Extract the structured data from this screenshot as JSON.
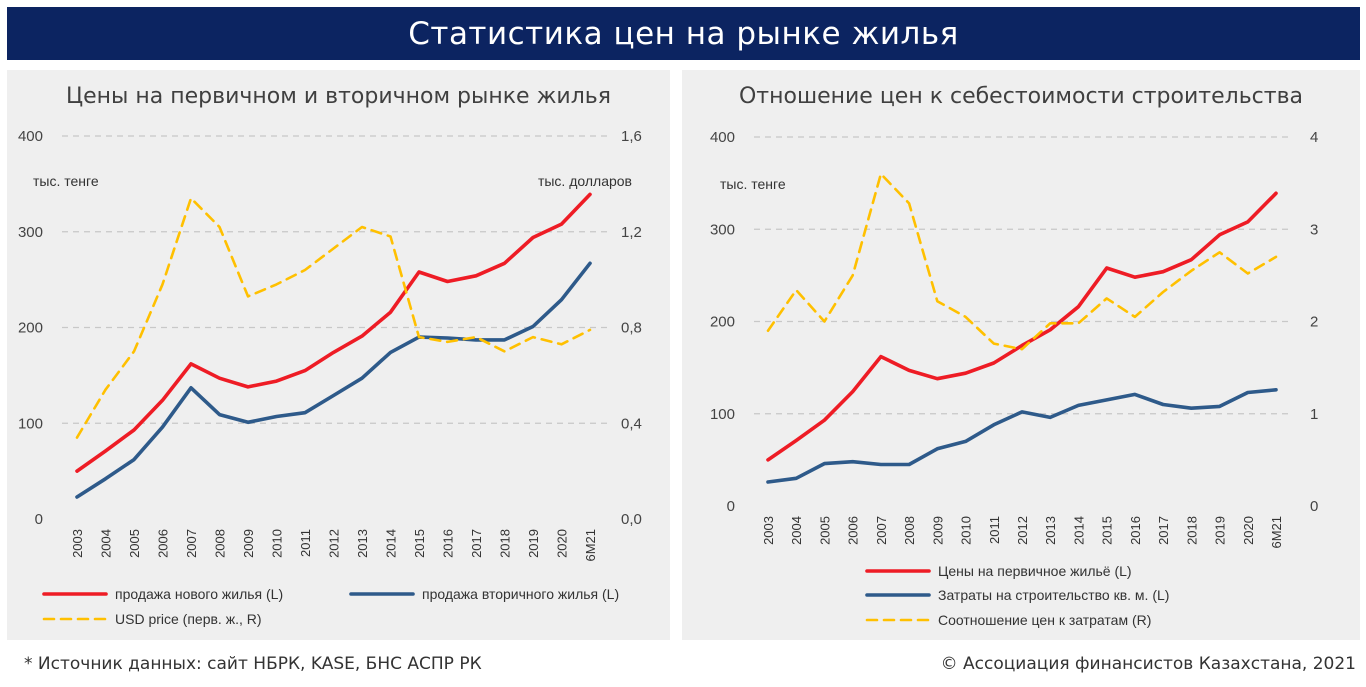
{
  "header": {
    "title": "Статистика цен на рынке жилья"
  },
  "footer": {
    "source": "* Источник данных: сайт НБРК, KASE, БНС АСПР РК",
    "copyright": "© Ассоциация финансистов Казахстана, 2021"
  },
  "colors": {
    "banner": "#0c2461",
    "panel": "#efefef",
    "red": "#ee1c25",
    "blue": "#2e5a8a",
    "yellow": "#ffc000"
  },
  "chart_data": [
    {
      "type": "line",
      "title": "Цены на первичном и вторичном рынке жилья",
      "left_unit": "тыс. тенге",
      "right_unit": "тыс. долларов",
      "x": [
        "2003",
        "2004",
        "2005",
        "2006",
        "2007",
        "2008",
        "2009",
        "2010",
        "2011",
        "2012",
        "2013",
        "2014",
        "2015",
        "2016",
        "2017",
        "2018",
        "2019",
        "2020",
        "6М21"
      ],
      "ylim_left": [
        0,
        400
      ],
      "yticks_left": [
        "0",
        "100",
        "200",
        "300",
        "400"
      ],
      "ylim_right": [
        0,
        1.6
      ],
      "yticks_right": [
        "0,0",
        "0,4",
        "0,8",
        "1,2",
        "1,6"
      ],
      "series": [
        {
          "name": "продажа нового жилья (L)",
          "axis": "left",
          "color": "#ee1c25",
          "style": "solid",
          "values": [
            50,
            71,
            93,
            124,
            162,
            147,
            138,
            144,
            155,
            174,
            191,
            216,
            258,
            248,
            254,
            267,
            294,
            308,
            339
          ]
        },
        {
          "name": "продажа вторичного жилья (L)",
          "axis": "left",
          "color": "#2e5a8a",
          "style": "solid",
          "values": [
            23,
            42,
            62,
            96,
            137,
            109,
            101,
            107,
            111,
            129,
            147,
            174,
            190,
            189,
            187,
            187,
            201,
            229,
            267
          ]
        },
        {
          "name": "USD price (перв. ж., R)",
          "axis": "right",
          "color": "#ffc000",
          "style": "dashed",
          "values": [
            0.34,
            0.54,
            0.7,
            0.98,
            1.34,
            1.22,
            0.93,
            0.98,
            1.04,
            1.13,
            1.22,
            1.18,
            0.76,
            0.74,
            0.76,
            0.7,
            0.76,
            0.73,
            0.79
          ]
        }
      ],
      "legend": [
        {
          "label": "продажа нового жилья (L)",
          "series": 0
        },
        {
          "label": "продажа вторичного жилья (L)",
          "series": 1
        },
        {
          "label": "USD price (перв. ж., R)",
          "series": 2
        }
      ],
      "grid": true,
      "legend_position": "bottom"
    },
    {
      "type": "line",
      "title": "Отношение цен к себестоимости строительства",
      "left_unit": "тыс. тенге",
      "right_unit": "",
      "x": [
        "2003",
        "2004",
        "2005",
        "2006",
        "2007",
        "2008",
        "2009",
        "2010",
        "2011",
        "2012",
        "2013",
        "2014",
        "2015",
        "2016",
        "2017",
        "2018",
        "2019",
        "2020",
        "6М21"
      ],
      "ylim_left": [
        0,
        400
      ],
      "yticks_left": [
        "0",
        "100",
        "200",
        "300",
        "400"
      ],
      "ylim_right": [
        0,
        4
      ],
      "yticks_right": [
        "0",
        "1",
        "2",
        "3",
        "4"
      ],
      "series": [
        {
          "name": "Цены на первичное жильё (L)",
          "axis": "left",
          "color": "#ee1c25",
          "style": "solid",
          "values": [
            50,
            71,
            93,
            124,
            162,
            147,
            138,
            144,
            155,
            174,
            191,
            216,
            258,
            248,
            254,
            267,
            294,
            308,
            339
          ]
        },
        {
          "name": "Затраты на строительство кв. м. (L)",
          "axis": "left",
          "color": "#2e5a8a",
          "style": "solid",
          "values": [
            26,
            30,
            46,
            48,
            45,
            45,
            62,
            70,
            88,
            102,
            96,
            109,
            115,
            121,
            110,
            106,
            108,
            123,
            126
          ]
        },
        {
          "name": "Соотношение цен к затратам (R)",
          "axis": "right",
          "color": "#ffc000",
          "style": "dashed",
          "values": [
            1.9,
            2.34,
            2.0,
            2.5,
            3.6,
            3.28,
            2.22,
            2.05,
            1.76,
            1.7,
            1.98,
            1.98,
            2.25,
            2.05,
            2.32,
            2.55,
            2.75,
            2.52,
            2.7
          ]
        }
      ],
      "legend": [
        {
          "label": "Цены на первичное жильё (L)",
          "series": 0
        },
        {
          "label": "Затраты на строительство кв. м. (L)",
          "series": 1
        },
        {
          "label": "Соотношение цен к затратам (R)",
          "series": 2
        }
      ],
      "grid": true,
      "legend_position": "bottom"
    }
  ]
}
